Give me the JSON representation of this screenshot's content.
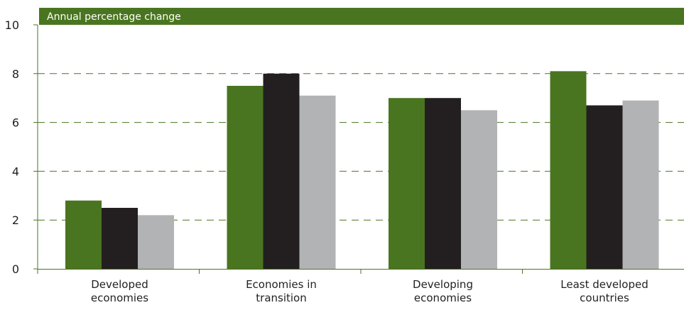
{
  "chart_data": {
    "type": "bar",
    "subtitle": "Annual percentage change",
    "categories": [
      [
        "Developed",
        "economies"
      ],
      [
        "Economies in",
        "transition"
      ],
      [
        "Developing",
        "economies"
      ],
      [
        "Least developed",
        "countries"
      ]
    ],
    "series": [
      {
        "values": [
          2.8,
          7.5,
          7.0,
          8.1
        ]
      },
      {
        "values": [
          2.5,
          8.0,
          7.0,
          6.7
        ]
      },
      {
        "values": [
          2.2,
          7.1,
          6.5,
          6.9
        ]
      }
    ],
    "ylim": [
      0,
      10
    ],
    "yticks": [
      0,
      2,
      4,
      6,
      8,
      10
    ],
    "grid": true,
    "colors": {
      "series": [
        "#4a7520",
        "#231f20",
        "#b2b3b5"
      ],
      "banner": "#4a7520",
      "grid": "#4a7520",
      "axis": "#4a7520"
    }
  }
}
